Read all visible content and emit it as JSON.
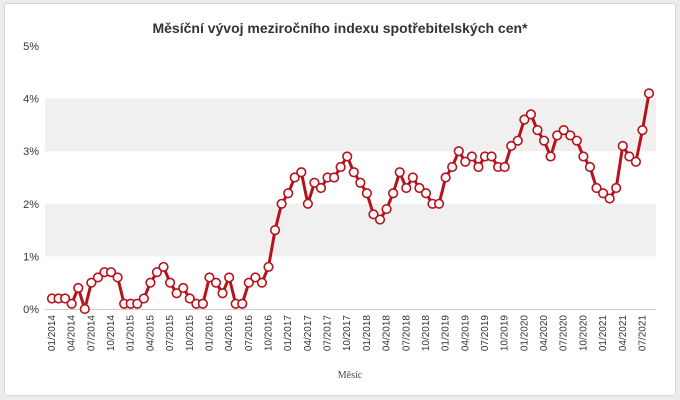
{
  "chart_data": {
    "type": "line",
    "title": "Měsíční vývoj meziročního indexu spotřebitelských cen*",
    "xlabel": "Měsíc",
    "ylabel": "",
    "ylim": [
      0,
      5
    ],
    "yticks": [
      "0%",
      "1%",
      "2%",
      "3%",
      "4%",
      "5%"
    ],
    "grid": "alternating horizontal bands",
    "legend": "none",
    "colors": {
      "line": "#b5121b",
      "marker_fill": "#ffffff",
      "band": "#f0f0f0"
    },
    "x_tick_labels": [
      "01/2014",
      "04/2014",
      "07/2014",
      "10/2014",
      "01/2015",
      "04/2015",
      "07/2015",
      "10/2015",
      "01/2016",
      "04/2016",
      "07/2016",
      "10/2016",
      "01/2017",
      "04/2017",
      "07/2017",
      "10/2017",
      "01/2018",
      "04/2018",
      "07/2018",
      "10/2018",
      "01/2019",
      "04/2019",
      "07/2019",
      "10/2019",
      "01/2020",
      "04/2020",
      "07/2020",
      "10/2020",
      "01/2021",
      "04/2021",
      "07/2021"
    ],
    "x": [
      "01/2014",
      "02/2014",
      "03/2014",
      "04/2014",
      "05/2014",
      "06/2014",
      "07/2014",
      "08/2014",
      "09/2014",
      "10/2014",
      "11/2014",
      "12/2014",
      "01/2015",
      "02/2015",
      "03/2015",
      "04/2015",
      "05/2015",
      "06/2015",
      "07/2015",
      "08/2015",
      "09/2015",
      "10/2015",
      "11/2015",
      "12/2015",
      "01/2016",
      "02/2016",
      "03/2016",
      "04/2016",
      "05/2016",
      "06/2016",
      "07/2016",
      "08/2016",
      "09/2016",
      "10/2016",
      "11/2016",
      "12/2016",
      "01/2017",
      "02/2017",
      "03/2017",
      "04/2017",
      "05/2017",
      "06/2017",
      "07/2017",
      "08/2017",
      "09/2017",
      "10/2017",
      "11/2017",
      "12/2017",
      "01/2018",
      "02/2018",
      "03/2018",
      "04/2018",
      "05/2018",
      "06/2018",
      "07/2018",
      "08/2018",
      "09/2018",
      "10/2018",
      "11/2018",
      "12/2018",
      "01/2019",
      "02/2019",
      "03/2019",
      "04/2019",
      "05/2019",
      "06/2019",
      "07/2019",
      "08/2019",
      "09/2019",
      "10/2019",
      "11/2019",
      "12/2019",
      "01/2020",
      "02/2020",
      "03/2020",
      "04/2020",
      "05/2020",
      "06/2020",
      "07/2020",
      "08/2020",
      "09/2020",
      "10/2020",
      "11/2020",
      "12/2020",
      "01/2021",
      "02/2021",
      "03/2021",
      "04/2021",
      "05/2021",
      "06/2021",
      "07/2021",
      "08/2021"
    ],
    "values": [
      0.2,
      0.2,
      0.2,
      0.1,
      0.4,
      0.0,
      0.5,
      0.6,
      0.7,
      0.7,
      0.6,
      0.1,
      0.1,
      0.1,
      0.2,
      0.5,
      0.7,
      0.8,
      0.5,
      0.3,
      0.4,
      0.2,
      0.1,
      0.1,
      0.6,
      0.5,
      0.3,
      0.6,
      0.1,
      0.1,
      0.5,
      0.6,
      0.5,
      0.8,
      1.5,
      2.0,
      2.2,
      2.5,
      2.6,
      2.0,
      2.4,
      2.3,
      2.5,
      2.5,
      2.7,
      2.9,
      2.6,
      2.4,
      2.2,
      1.8,
      1.7,
      1.9,
      2.2,
      2.6,
      2.3,
      2.5,
      2.3,
      2.2,
      2.0,
      2.0,
      2.5,
      2.7,
      3.0,
      2.8,
      2.9,
      2.7,
      2.9,
      2.9,
      2.7,
      2.7,
      3.1,
      3.2,
      3.6,
      3.7,
      3.4,
      3.2,
      2.9,
      3.3,
      3.4,
      3.3,
      3.2,
      2.9,
      2.7,
      2.3,
      2.2,
      2.1,
      2.3,
      3.1,
      2.9,
      2.8,
      3.4,
      4.1
    ]
  }
}
